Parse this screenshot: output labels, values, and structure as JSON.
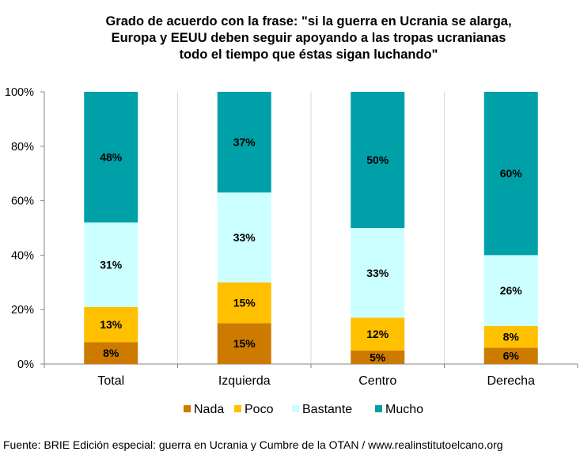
{
  "chart_data": {
    "type": "bar",
    "stacked": true,
    "title_lines": [
      "Grado de acuerdo con la frase: \"si la guerra en Ucrania se alarga,",
      "Europa y EEUU deben seguir apoyando a las tropas ucranianas",
      "todo el tiempo que éstas sigan luchando\""
    ],
    "categories": [
      "Total",
      "Izquierda",
      "Centro",
      "Derecha"
    ],
    "series": [
      {
        "name": "Nada",
        "color": "#cc7a00",
        "values": [
          8,
          15,
          5,
          6
        ]
      },
      {
        "name": "Poco",
        "color": "#ffc000",
        "values": [
          13,
          15,
          12,
          8
        ]
      },
      {
        "name": "Bastante",
        "color": "#ccffff",
        "values": [
          31,
          33,
          33,
          26
        ]
      },
      {
        "name": "Mucho",
        "color": "#00a0a8",
        "values": [
          48,
          37,
          50,
          60
        ]
      }
    ],
    "data_label_suffix": "%",
    "y_ticks": [
      "0%",
      "20%",
      "40%",
      "60%",
      "80%",
      "100%"
    ],
    "ylim": [
      0,
      100
    ],
    "grid": "vertical separators between categories",
    "legend_position": "bottom"
  },
  "source": "Fuente: BRIE Edición especial: guerra en Ucrania y Cumbre de la OTAN / www.realinstitutoelcano.org"
}
